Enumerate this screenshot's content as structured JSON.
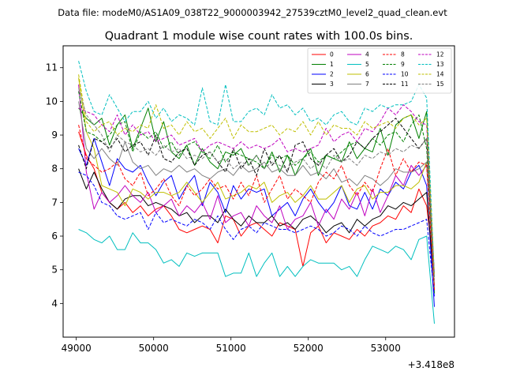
{
  "chart_data": {
    "type": "line",
    "suptitle": "Data file: modeM0/AS1A09_038T22_9000003942_27539cztM0_level2_quad_clean.evt",
    "title": "Quadrant 1 module wise count rates with 100.0s bins.",
    "xlabel": "",
    "ylabel": "",
    "x_offset_label": "+3.418e8",
    "xlim": [
      48830,
      53890
    ],
    "ylim": [
      3.0,
      11.65
    ],
    "x_ticks": [
      49000,
      50000,
      51000,
      52000,
      53000
    ],
    "x_tick_labels": [
      "49000",
      "50000",
      "51000",
      "52000",
      "53000"
    ],
    "y_ticks": [
      4,
      5,
      6,
      7,
      8,
      9,
      10,
      11
    ],
    "y_tick_labels": [
      "4",
      "5",
      "6",
      "7",
      "8",
      "9",
      "10",
      "11"
    ],
    "x": [
      49030,
      49130,
      49230,
      49330,
      49430,
      49530,
      49630,
      49730,
      49830,
      49930,
      50030,
      50130,
      50230,
      50330,
      50430,
      50530,
      50630,
      50730,
      50830,
      50930,
      51030,
      51130,
      51230,
      51330,
      51430,
      51530,
      51630,
      51730,
      51830,
      51930,
      52030,
      52130,
      52230,
      52330,
      52430,
      52530,
      52630,
      52730,
      52830,
      52930,
      53030,
      53130,
      53230,
      53330,
      53430,
      53530,
      53630
    ],
    "series": [
      {
        "name": "0",
        "color": "#ff0000",
        "dash": "solid",
        "values": [
          9.1,
          8.4,
          8.0,
          7.3,
          7.0,
          6.8,
          7.0,
          6.7,
          6.9,
          6.6,
          6.8,
          6.9,
          6.6,
          6.2,
          6.1,
          6.2,
          6.3,
          6.2,
          5.8,
          6.6,
          6.5,
          6.0,
          6.3,
          6.4,
          6.2,
          6.0,
          6.4,
          6.3,
          6.2,
          5.1,
          6.1,
          6.3,
          5.8,
          6.1,
          6.0,
          5.9,
          6.2,
          6.0,
          6.3,
          6.4,
          6.6,
          6.5,
          6.9,
          6.7,
          7.4,
          6.9,
          4.9
        ]
      },
      {
        "name": "1",
        "color": "#008000",
        "dash": "solid",
        "values": [
          9.8,
          9.5,
          9.3,
          9.5,
          8.7,
          9.3,
          9.6,
          8.6,
          9.2,
          9.8,
          8.8,
          9.4,
          8.5,
          8.3,
          8.7,
          8.1,
          8.6,
          8.2,
          8.0,
          8.5,
          8.4,
          8.6,
          8.1,
          8.4,
          8.0,
          8.5,
          7.9,
          8.4,
          7.8,
          8.3,
          8.6,
          7.8,
          8.4,
          8.3,
          8.2,
          8.8,
          8.3,
          8.6,
          8.5,
          9.2,
          8.4,
          9.3,
          9.5,
          9.6,
          8.9,
          9.7,
          4.3
        ]
      },
      {
        "name": "2",
        "color": "#0000ff",
        "dash": "solid",
        "values": [
          8.6,
          8.1,
          8.9,
          8.2,
          7.5,
          8.3,
          8.0,
          7.9,
          8.1,
          7.6,
          7.2,
          7.6,
          7.8,
          7.1,
          7.5,
          7.8,
          6.9,
          7.6,
          7.3,
          6.7,
          7.5,
          7.1,
          7.4,
          7.3,
          7.4,
          6.6,
          6.8,
          7.0,
          6.6,
          7.1,
          7.4,
          7.0,
          6.7,
          7.0,
          7.5,
          6.9,
          6.8,
          7.3,
          6.8,
          7.4,
          7.2,
          7.6,
          7.4,
          7.9,
          8.1,
          7.5,
          3.9
        ]
      },
      {
        "name": "3",
        "color": "#000000",
        "dash": "solid",
        "values": [
          8.0,
          7.4,
          7.9,
          7.4,
          7.0,
          6.8,
          7.1,
          7.2,
          7.2,
          6.9,
          7.0,
          6.9,
          6.8,
          6.6,
          6.7,
          6.4,
          6.6,
          6.6,
          6.4,
          6.8,
          6.5,
          6.3,
          6.6,
          6.4,
          6.4,
          6.6,
          6.3,
          6.4,
          6.2,
          6.5,
          6.6,
          6.4,
          6.1,
          6.3,
          6.4,
          6.1,
          6.5,
          6.3,
          6.5,
          6.6,
          6.9,
          6.8,
          7.0,
          6.9,
          7.1,
          7.3,
          4.5
        ]
      },
      {
        "name": "4",
        "color": "#bf00bf",
        "dash": "solid",
        "values": [
          10.5,
          7.9,
          6.8,
          7.3,
          7.0,
          7.2,
          7.5,
          7.2,
          7.0,
          7.3,
          6.7,
          6.9,
          7.1,
          6.6,
          6.9,
          6.7,
          7.0,
          6.5,
          7.2,
          6.4,
          6.6,
          6.7,
          6.3,
          6.9,
          6.6,
          6.4,
          6.9,
          6.2,
          6.5,
          6.6,
          7.0,
          6.3,
          6.8,
          6.5,
          7.1,
          6.8,
          7.3,
          6.6,
          7.4,
          6.7,
          7.2,
          7.8,
          7.5,
          8.1,
          7.8,
          8.1,
          4.5
        ]
      },
      {
        "name": "5",
        "color": "#00bfbf",
        "dash": "solid",
        "values": [
          6.2,
          6.1,
          5.9,
          5.8,
          6.0,
          5.6,
          5.6,
          6.1,
          5.8,
          5.8,
          5.6,
          5.2,
          5.3,
          5.1,
          5.5,
          5.4,
          5.5,
          5.5,
          5.5,
          4.8,
          4.9,
          4.9,
          5.5,
          4.8,
          5.2,
          5.5,
          4.8,
          5.1,
          4.8,
          5.1,
          5.3,
          5.2,
          5.2,
          5.2,
          5.0,
          5.1,
          4.8,
          5.3,
          5.7,
          5.6,
          5.5,
          5.7,
          5.6,
          5.3,
          5.9,
          6.0,
          3.4
        ]
      },
      {
        "name": "6",
        "color": "#bfbf00",
        "dash": "solid",
        "values": [
          10.7,
          9.1,
          8.6,
          7.5,
          7.4,
          7.3,
          6.9,
          7.4,
          7.3,
          7.1,
          7.3,
          7.3,
          7.2,
          7.3,
          7.6,
          7.3,
          7.0,
          7.3,
          7.6,
          7.1,
          7.2,
          7.3,
          7.5,
          7.4,
          7.6,
          7.0,
          7.2,
          7.3,
          7.0,
          7.2,
          7.5,
          7.1,
          7.1,
          7.3,
          7.5,
          7.0,
          7.4,
          7.5,
          7.1,
          7.3,
          7.3,
          7.5,
          7.5,
          7.4,
          7.6,
          8.2,
          4.6
        ]
      },
      {
        "name": "7",
        "color": "#808080",
        "dash": "solid",
        "values": [
          10.0,
          8.6,
          8.3,
          8.6,
          8.3,
          8.1,
          8.8,
          8.2,
          8.0,
          8.1,
          7.8,
          8.0,
          7.9,
          8.1,
          7.9,
          8.0,
          7.8,
          7.7,
          7.9,
          8.0,
          7.8,
          8.1,
          7.9,
          8.0,
          8.2,
          7.9,
          8.0,
          7.8,
          7.8,
          8.1,
          7.8,
          7.9,
          7.7,
          8.0,
          7.6,
          7.7,
          7.5,
          7.8,
          7.7,
          7.5,
          7.7,
          8.0,
          7.9,
          7.9,
          8.0,
          8.2,
          4.5
        ]
      },
      {
        "name": "8",
        "color": "#ff0000",
        "dash": "dashed",
        "values": [
          9.3,
          8.3,
          8.1,
          7.9,
          8.0,
          8.2,
          7.7,
          7.5,
          7.9,
          7.2,
          7.4,
          7.7,
          7.2,
          6.9,
          7.5,
          7.2,
          7.4,
          7.7,
          7.4,
          7.5,
          7.1,
          7.6,
          7.2,
          7.8,
          7.0,
          7.4,
          7.8,
          7.1,
          7.4,
          7.2,
          7.0,
          7.6,
          7.9,
          7.7,
          8.1,
          7.5,
          7.2,
          7.6,
          7.3,
          8.0,
          8.6,
          7.8,
          8.3,
          7.9,
          8.2,
          8.1,
          4.4
        ]
      },
      {
        "name": "9",
        "color": "#008000",
        "dash": "dashed",
        "values": [
          10.3,
          9.1,
          9.0,
          8.8,
          9.0,
          9.3,
          9.4,
          8.5,
          9.1,
          8.9,
          9.1,
          8.6,
          8.8,
          8.4,
          8.7,
          8.8,
          8.5,
          8.3,
          8.7,
          8.2,
          8.5,
          8.4,
          8.3,
          8.2,
          8.0,
          8.4,
          8.3,
          8.4,
          8.1,
          8.3,
          8.5,
          8.2,
          8.4,
          8.3,
          8.5,
          8.7,
          8.8,
          8.6,
          8.9,
          8.7,
          9.0,
          9.1,
          8.8,
          9.3,
          9.6,
          8.6,
          4.7
        ]
      },
      {
        "name": "10",
        "color": "#0000ff",
        "dash": "dashed",
        "values": [
          7.9,
          7.8,
          7.5,
          7.0,
          6.9,
          6.6,
          6.5,
          6.6,
          6.7,
          6.2,
          6.7,
          6.4,
          6.5,
          6.4,
          6.3,
          6.5,
          6.4,
          6.2,
          6.6,
          6.2,
          5.9,
          6.2,
          6.3,
          6.1,
          6.4,
          6.3,
          6.2,
          6.2,
          6.1,
          6.2,
          6.3,
          6.2,
          6.0,
          6.1,
          6.3,
          6.2,
          6.0,
          6.3,
          6.1,
          6.0,
          6.1,
          6.2,
          6.2,
          6.3,
          6.4,
          6.5,
          4.2
        ]
      },
      {
        "name": "11",
        "color": "#000000",
        "dash": "dashed",
        "values": [
          8.7,
          8.0,
          8.9,
          8.8,
          8.6,
          8.9,
          8.5,
          8.7,
          8.8,
          8.4,
          9.0,
          8.3,
          8.2,
          8.5,
          8.6,
          8.1,
          8.4,
          8.5,
          8.2,
          7.9,
          8.6,
          8.0,
          8.3,
          7.8,
          8.6,
          8.1,
          8.4,
          7.9,
          8.7,
          8.8,
          8.3,
          8.1,
          8.4,
          8.6,
          8.2,
          8.4,
          8.8,
          8.6,
          8.9,
          9.1,
          9.3,
          9.5,
          9.2,
          8.9,
          8.6,
          8.9,
          4.8
        ]
      },
      {
        "name": "12",
        "color": "#bf00bf",
        "dash": "dashed",
        "values": [
          9.8,
          9.7,
          9.6,
          9.3,
          9.1,
          9.6,
          9.0,
          9.3,
          9.0,
          9.1,
          8.8,
          8.9,
          9.0,
          8.7,
          8.8,
          8.9,
          8.5,
          8.7,
          8.8,
          8.7,
          8.6,
          8.8,
          8.6,
          8.7,
          8.6,
          8.7,
          8.9,
          8.5,
          8.6,
          8.5,
          8.6,
          8.7,
          9.2,
          8.8,
          9.0,
          9.1,
          8.8,
          9.2,
          9.1,
          9.4,
          9.8,
          9.6,
          9.9,
          9.7,
          9.4,
          9.3,
          4.9
        ]
      },
      {
        "name": "13",
        "color": "#00bfbf",
        "dash": "dashed",
        "values": [
          11.2,
          10.3,
          9.7,
          9.6,
          10.2,
          9.8,
          9.4,
          9.7,
          9.7,
          10.0,
          9.5,
          9.8,
          9.4,
          9.6,
          9.5,
          9.3,
          10.4,
          9.4,
          9.3,
          10.5,
          9.4,
          9.4,
          9.7,
          9.8,
          9.6,
          10.2,
          9.8,
          9.9,
          9.6,
          9.8,
          9.4,
          9.5,
          9.3,
          9.6,
          9.7,
          9.4,
          9.3,
          9.8,
          9.7,
          9.9,
          9.8,
          9.9,
          9.9,
          10.0,
          10.5,
          10.1,
          4.8
        ]
      },
      {
        "name": "14",
        "color": "#bfbf00",
        "dash": "dashed",
        "values": [
          10.8,
          9.4,
          9.1,
          9.3,
          9.4,
          9.0,
          9.2,
          9.1,
          9.3,
          9.2,
          9.9,
          9.2,
          9.3,
          9.0,
          9.4,
          9.1,
          9.2,
          8.9,
          9.2,
          9.5,
          8.9,
          9.3,
          9.1,
          9.1,
          9.2,
          9.3,
          9.0,
          9.2,
          9.1,
          9.4,
          9.0,
          9.4,
          9.0,
          9.3,
          9.2,
          9.2,
          9.0,
          9.4,
          9.2,
          9.3,
          9.4,
          9.2,
          9.5,
          9.6,
          9.3,
          9.5,
          4.8
        ]
      },
      {
        "name": "15",
        "color": "#808080",
        "dash": "dashed",
        "values": [
          10.4,
          9.6,
          9.3,
          9.0,
          8.5,
          9.0,
          8.8,
          8.7,
          8.5,
          8.6,
          8.4,
          8.7,
          8.5,
          8.6,
          8.3,
          8.4,
          8.3,
          8.5,
          8.2,
          8.3,
          8.0,
          8.2,
          8.1,
          8.4,
          8.0,
          8.2,
          8.1,
          8.0,
          8.2,
          8.3,
          8.0,
          8.2,
          8.0,
          8.4,
          8.2,
          8.3,
          8.1,
          8.4,
          8.3,
          8.5,
          8.4,
          8.6,
          8.5,
          8.7,
          8.6,
          8.9,
          4.7
        ]
      }
    ]
  }
}
